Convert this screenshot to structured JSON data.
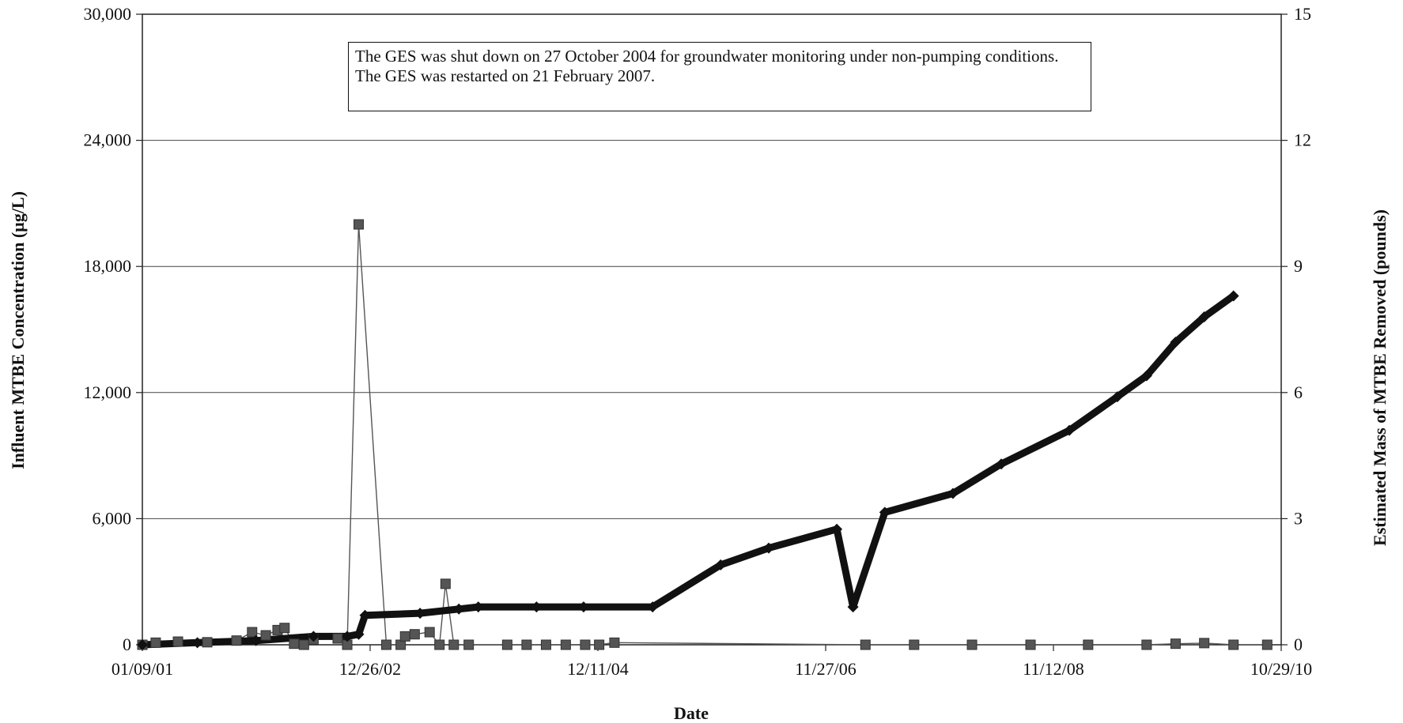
{
  "chart_data": {
    "type": "line",
    "xlabel": "Date",
    "ylabel_left": "Influent MTBE Concentration (µg/L)",
    "ylabel_right": "Estimated Mass of MTBE Removed (pounds)",
    "x_tick_labels": [
      "01/09/01",
      "12/26/02",
      "12/11/04",
      "11/27/06",
      "11/12/08",
      "10/29/10"
    ],
    "x_range": [
      "01/09/01",
      "10/29/10"
    ],
    "y_left_ticks": [
      "0",
      "6,000",
      "12,000",
      "18,000",
      "24,000",
      "30,000"
    ],
    "y_left_range": [
      0,
      30000
    ],
    "y_right_ticks": [
      "0",
      "3",
      "6",
      "9",
      "12",
      "15"
    ],
    "y_right_range": [
      0,
      15
    ],
    "grid": "horizontal",
    "annotation": "The GES was shut down on 27 October 2004 for groundwater monitoring under non-pumping conditions. The GES was restarted on 21 February 2007.",
    "series": [
      {
        "axis": "left",
        "marker": "square",
        "color": "#555555",
        "points": [
          [
            "01/09/01",
            0
          ],
          [
            "02/20/01",
            100
          ],
          [
            "05/01/01",
            150
          ],
          [
            "08/01/01",
            120
          ],
          [
            "11/01/01",
            200
          ],
          [
            "12/20/01",
            600
          ],
          [
            "02/01/02",
            450
          ],
          [
            "03/10/02",
            700
          ],
          [
            "04/01/02",
            800
          ],
          [
            "05/01/02",
            50
          ],
          [
            "06/01/02",
            0
          ],
          [
            "07/01/02",
            250
          ],
          [
            "09/15/02",
            300
          ],
          [
            "10/15/02",
            0
          ],
          [
            "11/20/02",
            20000
          ],
          [
            "02/15/03",
            0
          ],
          [
            "04/01/03",
            0
          ],
          [
            "04/15/03",
            400
          ],
          [
            "05/15/03",
            500
          ],
          [
            "07/01/03",
            600
          ],
          [
            "08/01/03",
            0
          ],
          [
            "08/20/03",
            2900
          ],
          [
            "09/15/03",
            0
          ],
          [
            "11/01/03",
            0
          ],
          [
            "03/01/04",
            0
          ],
          [
            "05/01/04",
            0
          ],
          [
            "07/01/04",
            0
          ],
          [
            "09/01/04",
            0
          ],
          [
            "11/01/04",
            0
          ],
          [
            "12/15/04",
            0
          ],
          [
            "02/01/05",
            100
          ],
          [
            "04/01/07",
            0
          ],
          [
            "09/01/07",
            0
          ],
          [
            "03/01/08",
            0
          ],
          [
            "09/01/08",
            0
          ],
          [
            "03/01/09",
            0
          ],
          [
            "09/01/09",
            0
          ],
          [
            "12/01/09",
            50
          ],
          [
            "03/01/10",
            80
          ],
          [
            "06/01/10",
            0
          ],
          [
            "09/15/10",
            0
          ]
        ]
      },
      {
        "axis": "right",
        "marker": "diamond",
        "color": "#111111",
        "points": [
          [
            "01/09/01",
            0
          ],
          [
            "07/01/01",
            0.05
          ],
          [
            "01/01/02",
            0.1
          ],
          [
            "07/01/02",
            0.2
          ],
          [
            "10/15/02",
            0.2
          ],
          [
            "11/20/02",
            0.25
          ],
          [
            "12/10/02",
            0.7
          ],
          [
            "06/01/03",
            0.75
          ],
          [
            "10/01/03",
            0.85
          ],
          [
            "12/01/03",
            0.9
          ],
          [
            "06/01/04",
            0.9
          ],
          [
            "10/27/04",
            0.9
          ],
          [
            "02/21/07",
            0.9
          ],
          [
            "06/01/05",
            0.9
          ],
          [
            "01/01/06",
            1.9
          ],
          [
            "06/01/06",
            2.3
          ],
          [
            "01/01/07",
            2.75
          ],
          [
            "06/01/07",
            3.15
          ],
          [
            "01/01/08",
            3.6
          ],
          [
            "06/01/08",
            4.3
          ],
          [
            "01/01/09",
            5.1
          ],
          [
            "06/01/09",
            5.9
          ],
          [
            "09/01/09",
            6.4
          ],
          [
            "12/01/09",
            7.2
          ],
          [
            "03/01/10",
            7.8
          ],
          [
            "06/01/10",
            8.3
          ]
        ]
      }
    ]
  }
}
